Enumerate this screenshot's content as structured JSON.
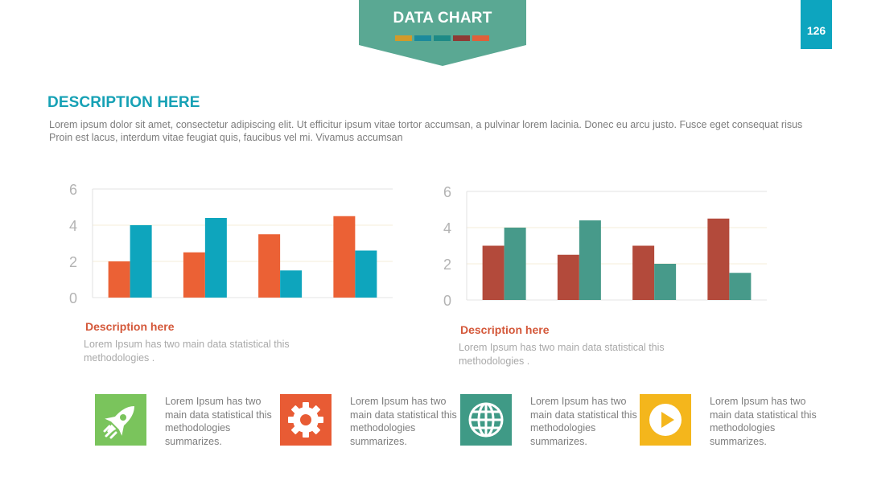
{
  "header": {
    "title": "DATA CHART",
    "swatch_colors": [
      "#d29a2a",
      "#1b8a9c",
      "#1d8a86",
      "#8e3a34",
      "#e0603a"
    ]
  },
  "page_number": "126",
  "section": {
    "title": "DESCRIPTION HERE",
    "text": "Lorem ipsum dolor sit amet, consectetur adipiscing elit. Ut efficitur ipsum vitae tortor accumsan, a pulvinar lorem lacinia. Donec eu arcu justo. Fusce eget consequat risus Proin est lacus, interdum vitae feugiat quis, faucibus vel mi.  Vivamus accumsan"
  },
  "chart_data": [
    {
      "type": "bar",
      "categories": [
        "",
        "",
        "",
        ""
      ],
      "series": [
        {
          "values": [
            2.0,
            2.5,
            3.5,
            4.5
          ],
          "color": "#eb6135"
        },
        {
          "values": [
            4.0,
            4.4,
            1.5,
            2.6
          ],
          "color": "#0ea5bd"
        }
      ],
      "ylim": [
        0,
        6
      ],
      "yticks": [
        "0",
        "2",
        "4",
        "6"
      ],
      "grid": true
    },
    {
      "type": "bar",
      "categories": [
        "",
        "",
        "",
        ""
      ],
      "series": [
        {
          "values": [
            3.0,
            2.5,
            3.0,
            4.5
          ],
          "color": "#b34a3b"
        },
        {
          "values": [
            4.0,
            4.4,
            2.0,
            1.5
          ],
          "color": "#479a8a"
        }
      ],
      "ylim": [
        0,
        6
      ],
      "yticks": [
        "0",
        "2",
        "4",
        "6"
      ],
      "grid": true
    }
  ],
  "chart_descriptions": [
    {
      "title": "Description here",
      "text": "Lorem Ipsum has two main data statistical this methodologies ."
    },
    {
      "title": "Description here",
      "text": "Lorem Ipsum has two main data statistical this methodologies ."
    }
  ],
  "features": [
    {
      "icon": "rocket-icon",
      "color": "#7ac45c",
      "text": "Lorem Ipsum has two main data statistical this methodologies summarizes."
    },
    {
      "icon": "gear-icon",
      "color": "#e85b34",
      "text": "Lorem Ipsum has two main data statistical this methodologies summarizes."
    },
    {
      "icon": "globe-icon",
      "color": "#3f9a86",
      "text": "Lorem Ipsum has two main data statistical this methodologies summarizes."
    },
    {
      "icon": "play-icon",
      "color": "#f4b61c",
      "text": "Lorem Ipsum has two main data statistical this methodologies summarizes."
    }
  ]
}
